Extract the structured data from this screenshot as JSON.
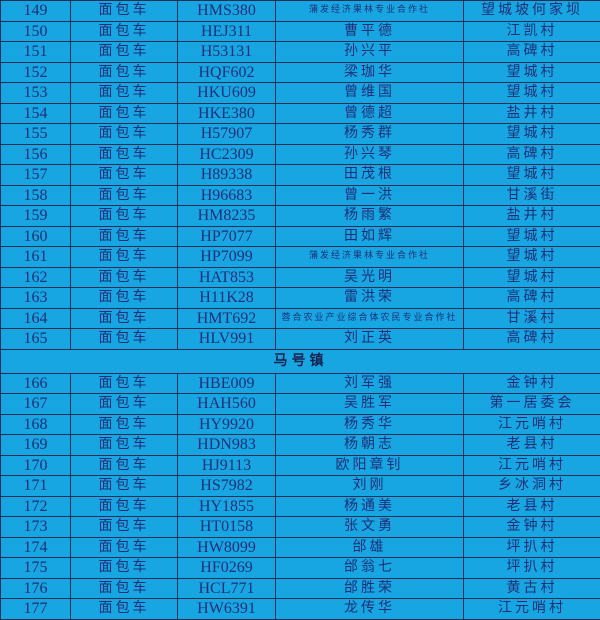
{
  "colors": {
    "background": "#18a6e3",
    "text": "#1d2f78",
    "grid": "#1c2f55"
  },
  "group1": [
    {
      "no": "149",
      "type": "面包车",
      "plate": "HMS380",
      "owner": "蒲发经济果林专业合作社",
      "village": "望城坡何家坝"
    },
    {
      "no": "150",
      "type": "面包车",
      "plate": "HEJ311",
      "owner": "曹平德",
      "village": "江凯村"
    },
    {
      "no": "151",
      "type": "面包车",
      "plate": "H53131",
      "owner": "孙兴平",
      "village": "高碑村"
    },
    {
      "no": "152",
      "type": "面包车",
      "plate": "HQF602",
      "owner": "梁珈华",
      "village": "望城村"
    },
    {
      "no": "153",
      "type": "面包车",
      "plate": "HKU609",
      "owner": "曾维国",
      "village": "望城村"
    },
    {
      "no": "154",
      "type": "面包车",
      "plate": "HKE380",
      "owner": "曾德超",
      "village": "盐井村"
    },
    {
      "no": "155",
      "type": "面包车",
      "plate": "H57907",
      "owner": "杨秀群",
      "village": "望城村"
    },
    {
      "no": "156",
      "type": "面包车",
      "plate": "HC2309",
      "owner": "孙兴琴",
      "village": "高碑村"
    },
    {
      "no": "157",
      "type": "面包车",
      "plate": "H89338",
      "owner": "田茂根",
      "village": "望城村"
    },
    {
      "no": "158",
      "type": "面包车",
      "plate": "H96683",
      "owner": "曾一洪",
      "village": "甘溪街"
    },
    {
      "no": "159",
      "type": "面包车",
      "plate": "HM8235",
      "owner": "杨雨繁",
      "village": "盐井村"
    },
    {
      "no": "160",
      "type": "面包车",
      "plate": "HP7077",
      "owner": "田如辉",
      "village": "望城村"
    },
    {
      "no": "161",
      "type": "面包车",
      "plate": "HP7099",
      "owner": "蒲发经济果林专业合作社",
      "village": "望城村"
    },
    {
      "no": "162",
      "type": "面包车",
      "plate": "HAT853",
      "owner": "吴光明",
      "village": "望城村"
    },
    {
      "no": "163",
      "type": "面包车",
      "plate": "H11K28",
      "owner": "雷洪荣",
      "village": "高碑村"
    },
    {
      "no": "164",
      "type": "面包车",
      "plate": "HMT692",
      "owner": "蓉合农业产业综合体农民专业合作社",
      "village": "甘溪村"
    },
    {
      "no": "165",
      "type": "面包车",
      "plate": "HLV991",
      "owner": "刘正英",
      "village": "高碑村"
    }
  ],
  "section_title": "马号镇",
  "group2": [
    {
      "no": "166",
      "type": "面包车",
      "plate": "HBE009",
      "owner": "刘军强",
      "village": "金钟村"
    },
    {
      "no": "167",
      "type": "面包车",
      "plate": "HAH560",
      "owner": "吴胜军",
      "village": "第一居委会"
    },
    {
      "no": "168",
      "type": "面包车",
      "plate": "HY9920",
      "owner": "杨秀华",
      "village": "江元哨村"
    },
    {
      "no": "169",
      "type": "面包车",
      "plate": "HDN983",
      "owner": "杨朝志",
      "village": "老县村"
    },
    {
      "no": "170",
      "type": "面包车",
      "plate": "HJ9113",
      "owner": "欧阳章钊",
      "village": "江元哨村"
    },
    {
      "no": "171",
      "type": "面包车",
      "plate": "HS7982",
      "owner": "刘刚",
      "village": "乡冰洞村"
    },
    {
      "no": "172",
      "type": "面包车",
      "plate": "HY1855",
      "owner": "杨通美",
      "village": "老县村"
    },
    {
      "no": "173",
      "type": "面包车",
      "plate": "HT0158",
      "owner": "张文勇",
      "village": "金钟村"
    },
    {
      "no": "174",
      "type": "面包车",
      "plate": "HW8099",
      "owner": "邰雄",
      "village": "坪扒村"
    },
    {
      "no": "175",
      "type": "面包车",
      "plate": "HF0269",
      "owner": "邰翁七",
      "village": "坪扒村"
    },
    {
      "no": "176",
      "type": "面包车",
      "plate": "HCL771",
      "owner": "邰胜荣",
      "village": "黄古村"
    },
    {
      "no": "177",
      "type": "面包车",
      "plate": "HW6391",
      "owner": "龙传华",
      "village": "江元哨村"
    }
  ]
}
